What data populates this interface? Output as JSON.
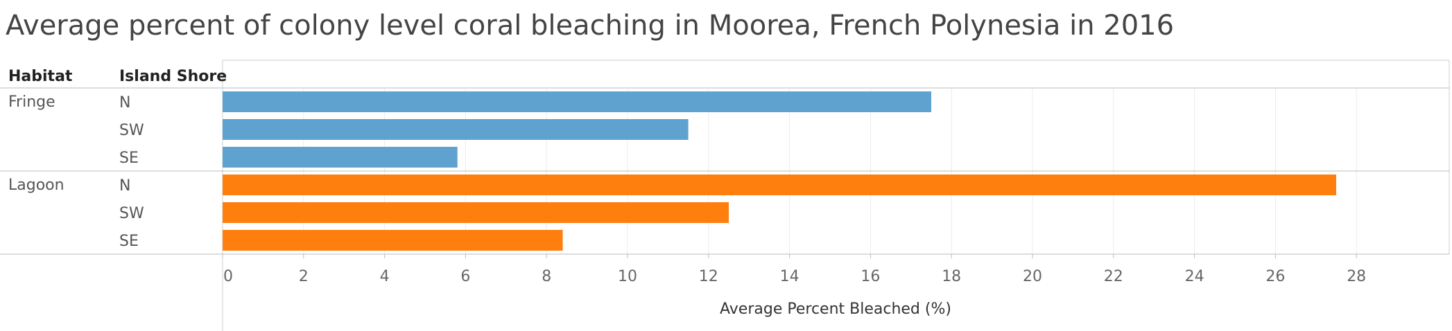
{
  "chart_data": {
    "type": "bar",
    "orientation": "horizontal",
    "title": "Average percent of colony level coral bleaching in Moorea, French Polynesia in 2016",
    "xlabel": "Average Percent Bleached (%)",
    "xlim": [
      0,
      29
    ],
    "xticks": [
      0,
      2,
      4,
      6,
      8,
      10,
      12,
      14,
      16,
      18,
      20,
      22,
      24,
      26,
      28
    ],
    "grid": true,
    "row_headers": [
      "Habitat",
      "Island Shore"
    ],
    "groups": [
      {
        "label": "Fringe",
        "color": "#5fa2d0",
        "rows": [
          {
            "label": "N",
            "value": 17.5
          },
          {
            "label": "SW",
            "value": 11.5
          },
          {
            "label": "SE",
            "value": 5.8
          }
        ]
      },
      {
        "label": "Lagoon",
        "color": "#ff7f0e",
        "rows": [
          {
            "label": "N",
            "value": 27.5
          },
          {
            "label": "SW",
            "value": 12.5
          },
          {
            "label": "SE",
            "value": 8.4
          }
        ]
      }
    ]
  }
}
